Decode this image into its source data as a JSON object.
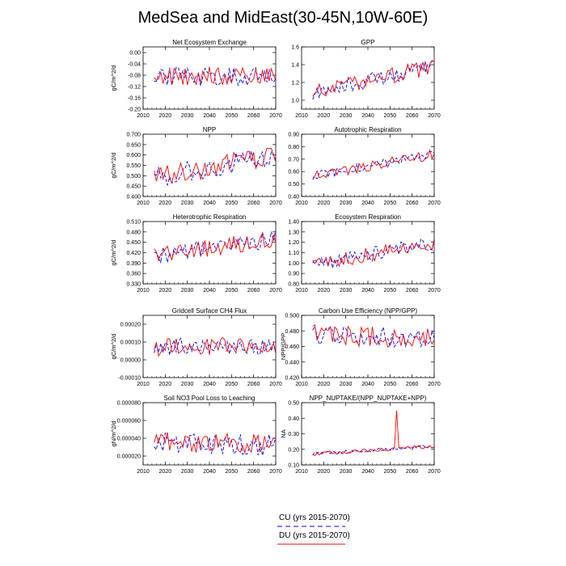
{
  "figure_title": "MedSea and MidEast(30-45N,10W-60E)",
  "legend": [
    {
      "label": "CU (yrs 2015-2070)",
      "color": "#0000ff",
      "dash": "dashed"
    },
    {
      "label": "DU (yrs 2015-2070)",
      "color": "#ff0000",
      "dash": "solid"
    }
  ],
  "chart_data": [
    {
      "type": "line",
      "title": "Net Ecosystem Exchange",
      "ylabel": "gC/m^2/d",
      "xlim": [
        2010,
        2070
      ],
      "ylim": [
        -0.2,
        0.02
      ],
      "x_ticks": [
        2010,
        2020,
        2030,
        2040,
        2050,
        2060,
        2070
      ],
      "y_ticks": [
        -0.2,
        -0.16,
        -0.12,
        -0.08,
        -0.04,
        0.0
      ],
      "y_tick_labels": [
        "-0.20",
        "-0.16",
        "-0.12",
        "-0.08",
        "-0.04",
        "0.00"
      ],
      "series": [
        {
          "name": "CU",
          "color": "#0000ff",
          "dash": "dashed",
          "seed": 11
        },
        {
          "name": "DU",
          "color": "#ff0000",
          "dash": "solid",
          "seed": 12
        }
      ],
      "trend": [
        -0.08,
        -0.09
      ],
      "noise": 0.035
    },
    {
      "type": "line",
      "title": "GPP",
      "ylabel": "",
      "xlim": [
        2010,
        2070
      ],
      "ylim": [
        0.9,
        1.6
      ],
      "x_ticks": [
        2010,
        2020,
        2030,
        2040,
        2050,
        2060,
        2070
      ],
      "y_ticks": [
        1.0,
        1.2,
        1.4,
        1.6
      ],
      "y_tick_labels": [
        "1.0",
        "1.2",
        "1.4",
        "1.6"
      ],
      "series": [
        {
          "name": "CU",
          "color": "#0000ff",
          "dash": "dashed",
          "seed": 21
        },
        {
          "name": "DU",
          "color": "#ff0000",
          "dash": "solid",
          "seed": 22
        }
      ],
      "trend": [
        1.08,
        1.38
      ],
      "noise": 0.09
    },
    {
      "type": "line",
      "title": "NPP",
      "ylabel": "gC/m^2/d",
      "xlim": [
        2010,
        2070
      ],
      "ylim": [
        0.4,
        0.7
      ],
      "x_ticks": [
        2010,
        2020,
        2030,
        2040,
        2050,
        2060,
        2070
      ],
      "y_ticks": [
        0.4,
        0.45,
        0.5,
        0.55,
        0.6,
        0.65,
        0.7
      ],
      "y_tick_labels": [
        "0.400",
        "0.450",
        "0.500",
        "0.550",
        "0.600",
        "0.650",
        "0.700"
      ],
      "series": [
        {
          "name": "CU",
          "color": "#0000ff",
          "dash": "dashed",
          "seed": 31
        },
        {
          "name": "DU",
          "color": "#ff0000",
          "dash": "solid",
          "seed": 32
        }
      ],
      "trend": [
        0.49,
        0.6
      ],
      "noise": 0.05
    },
    {
      "type": "line",
      "title": "Autotrophic Respiration",
      "ylabel": "",
      "xlim": [
        2010,
        2070
      ],
      "ylim": [
        0.4,
        0.9
      ],
      "x_ticks": [
        2010,
        2020,
        2030,
        2040,
        2050,
        2060,
        2070
      ],
      "y_ticks": [
        0.4,
        0.5,
        0.6,
        0.7,
        0.8,
        0.9
      ],
      "y_tick_labels": [
        "0.40",
        "0.50",
        "0.60",
        "0.70",
        "0.80",
        "0.90"
      ],
      "series": [
        {
          "name": "CU",
          "color": "#0000ff",
          "dash": "dashed",
          "seed": 41
        },
        {
          "name": "DU",
          "color": "#ff0000",
          "dash": "solid",
          "seed": 42
        }
      ],
      "trend": [
        0.56,
        0.74
      ],
      "noise": 0.04
    },
    {
      "type": "line",
      "title": "Heterotrophic Respiration",
      "ylabel": "gC/m^2/d",
      "xlim": [
        2010,
        2070
      ],
      "ylim": [
        0.33,
        0.51
      ],
      "x_ticks": [
        2010,
        2020,
        2030,
        2040,
        2050,
        2060,
        2070
      ],
      "y_ticks": [
        0.33,
        0.36,
        0.39,
        0.42,
        0.45,
        0.48,
        0.51
      ],
      "y_tick_labels": [
        "0.330",
        "0.360",
        "0.390",
        "0.420",
        "0.450",
        "0.480",
        "0.510"
      ],
      "series": [
        {
          "name": "CU",
          "color": "#0000ff",
          "dash": "dashed",
          "seed": 51
        },
        {
          "name": "DU",
          "color": "#ff0000",
          "dash": "solid",
          "seed": 52
        }
      ],
      "trend": [
        0.41,
        0.46
      ],
      "noise": 0.025
    },
    {
      "type": "line",
      "title": "Ecosystem Respiration",
      "ylabel": "",
      "xlim": [
        2010,
        2070
      ],
      "ylim": [
        0.8,
        1.4
      ],
      "x_ticks": [
        2010,
        2020,
        2030,
        2040,
        2050,
        2060,
        2070
      ],
      "y_ticks": [
        0.8,
        0.9,
        1.0,
        1.1,
        1.2,
        1.3,
        1.4
      ],
      "y_tick_labels": [
        "0.80",
        "0.90",
        "1.00",
        "1.10",
        "1.20",
        "1.30",
        "1.40"
      ],
      "series": [
        {
          "name": "CU",
          "color": "#0000ff",
          "dash": "dashed",
          "seed": 61
        },
        {
          "name": "DU",
          "color": "#ff0000",
          "dash": "solid",
          "seed": 62
        }
      ],
      "trend": [
        0.98,
        1.2
      ],
      "noise": 0.07
    },
    {
      "type": "line",
      "title": "Gridcell Surface CH4 Flux",
      "ylabel": "gC/m^2/d",
      "xlim": [
        2010,
        2070
      ],
      "ylim": [
        -0.0001,
        0.00025
      ],
      "x_ticks": [
        2010,
        2020,
        2030,
        2040,
        2050,
        2060,
        2070
      ],
      "y_ticks": [
        -0.0001,
        0.0,
        0.0001,
        0.0002
      ],
      "y_tick_labels": [
        "-0.00010",
        "0.00000",
        "0.00010",
        "0.00020"
      ],
      "series": [
        {
          "name": "CU",
          "color": "#0000ff",
          "dash": "dashed",
          "seed": 71
        },
        {
          "name": "DU",
          "color": "#ff0000",
          "dash": "solid",
          "seed": 72
        }
      ],
      "trend": [
        7e-05,
        8e-05
      ],
      "noise": 5e-05
    },
    {
      "type": "line",
      "title": "Carbon Use Efficiency (NPP/GPP)",
      "ylabel": "NPP/GPP",
      "xlim": [
        2010,
        2070
      ],
      "ylim": [
        0.42,
        0.5
      ],
      "x_ticks": [
        2010,
        2020,
        2030,
        2040,
        2050,
        2060,
        2070
      ],
      "y_ticks": [
        0.42,
        0.44,
        0.46,
        0.48,
        0.5
      ],
      "y_tick_labels": [
        "0.420",
        "0.440",
        "0.460",
        "0.480",
        "0.500"
      ],
      "series": [
        {
          "name": "CU",
          "color": "#0000ff",
          "dash": "dashed",
          "seed": 81
        },
        {
          "name": "DU",
          "color": "#ff0000",
          "dash": "solid",
          "seed": 82
        }
      ],
      "trend": [
        0.475,
        0.47
      ],
      "noise": 0.013
    },
    {
      "type": "line",
      "title": "Soil NO3 Pool Loss to Leaching",
      "ylabel": "gN/m^2/d",
      "xlim": [
        2010,
        2070
      ],
      "ylim": [
        1e-05,
        8e-05
      ],
      "x_ticks": [
        2010,
        2020,
        2030,
        2040,
        2050,
        2060,
        2070
      ],
      "y_ticks": [
        2e-05,
        4e-05,
        6e-05,
        8e-05
      ],
      "y_tick_labels": [
        "0.000020",
        "0.000040",
        "0.000060",
        "0.000080"
      ],
      "series": [
        {
          "name": "CU",
          "color": "#0000ff",
          "dash": "dashed",
          "seed": 91
        },
        {
          "name": "DU",
          "color": "#ff0000",
          "dash": "solid",
          "seed": 92
        }
      ],
      "trend": [
        3.6e-05,
        3.2e-05
      ],
      "noise": 1.2e-05
    },
    {
      "type": "line",
      "title": "NPP_NUPTAKE/(NPP_NUPTAKE+NPP)",
      "ylabel": "NA",
      "xlim": [
        2010,
        2070
      ],
      "ylim": [
        0.1,
        0.5
      ],
      "x_ticks": [
        2010,
        2020,
        2030,
        2040,
        2050,
        2060,
        2070
      ],
      "y_ticks": [
        0.1,
        0.2,
        0.3,
        0.4,
        0.5
      ],
      "y_tick_labels": [
        "0.10",
        "0.20",
        "0.30",
        "0.40",
        "0.50"
      ],
      "series": [
        {
          "name": "CU",
          "color": "#0000ff",
          "dash": "dashed",
          "seed": 101
        },
        {
          "name": "DU",
          "color": "#ff0000",
          "dash": "solid",
          "seed": 102
        }
      ],
      "trend": [
        0.17,
        0.22
      ],
      "noise": 0.012,
      "spike": {
        "series": "DU",
        "year": 2053,
        "value": 0.45
      }
    }
  ]
}
